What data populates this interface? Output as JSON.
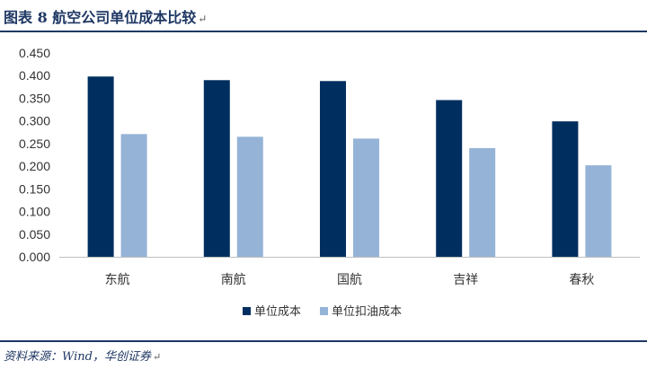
{
  "figure": {
    "title": "图表 8   航空公司单位成本比较",
    "title_mark": "↵",
    "source": "资料来源：Wind，华创证券",
    "source_mark": "↵",
    "rule_color": "#1f3864"
  },
  "chart_data": {
    "type": "bar",
    "categories": [
      "东航",
      "南航",
      "国航",
      "吉祥",
      "春秋"
    ],
    "series": [
      {
        "name": "单位成本",
        "color": "#002f5f",
        "values": [
          0.398,
          0.39,
          0.388,
          0.346,
          0.299
        ]
      },
      {
        "name": "单位扣油成本",
        "color": "#95b3d7",
        "values": [
          0.271,
          0.265,
          0.261,
          0.24,
          0.202
        ]
      }
    ],
    "ylim": [
      0,
      0.45
    ],
    "yticks": [
      "0.000",
      "0.050",
      "0.100",
      "0.150",
      "0.200",
      "0.250",
      "0.300",
      "0.350",
      "0.400",
      "0.450"
    ],
    "xlabel": "",
    "ylabel": "",
    "grid": false,
    "legend_position": "bottom"
  }
}
